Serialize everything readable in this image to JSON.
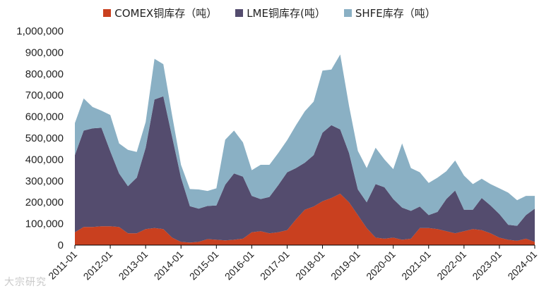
{
  "watermark": "大宗研究",
  "legend": [
    {
      "label": "COMEX铜库存（吨）",
      "color": "#c9401f"
    },
    {
      "label": "LME铜库存(吨）",
      "color": "#544c6e"
    },
    {
      "label": "SHFE库存（吨）",
      "color": "#8ab0c4"
    }
  ],
  "chart_data": {
    "type": "area",
    "stacked": true,
    "x": [
      "2011-01",
      "2011-04",
      "2011-07",
      "2011-10",
      "2012-01",
      "2012-04",
      "2012-07",
      "2012-10",
      "2013-01",
      "2013-04",
      "2013-07",
      "2013-10",
      "2014-01",
      "2014-04",
      "2014-07",
      "2014-10",
      "2015-01",
      "2015-04",
      "2015-07",
      "2015-10",
      "2016-01",
      "2016-04",
      "2016-07",
      "2016-10",
      "2017-01",
      "2017-04",
      "2017-07",
      "2017-10",
      "2018-01",
      "2018-04",
      "2018-07",
      "2018-10",
      "2019-01",
      "2019-04",
      "2019-07",
      "2019-10",
      "2020-01",
      "2020-04",
      "2020-07",
      "2020-10",
      "2021-01",
      "2021-04",
      "2021-07",
      "2021-10",
      "2022-01",
      "2022-04",
      "2022-07",
      "2022-10",
      "2023-01",
      "2023-04",
      "2023-07",
      "2023-10",
      "2024-01"
    ],
    "xticks": [
      "2011-01",
      "2012-01",
      "2013-01",
      "2014-01",
      "2015-01",
      "2016-01",
      "2017-01",
      "2018-01",
      "2019-01",
      "2020-01",
      "2021-01",
      "2022-01",
      "2023-01",
      "2024-01"
    ],
    "ylim": [
      0,
      1000000
    ],
    "yticks": [
      "0",
      "100,000",
      "200,000",
      "300,000",
      "400,000",
      "500,000",
      "600,000",
      "700,000",
      "800,000",
      "900,000",
      "1,000,000"
    ],
    "series": [
      {
        "name": "COMEX铜库存（吨）",
        "color": "#c9401f",
        "values": [
          60000,
          85000,
          85000,
          88000,
          88000,
          85000,
          55000,
          55000,
          75000,
          80000,
          75000,
          35000,
          15000,
          12000,
          15000,
          28000,
          25000,
          22000,
          25000,
          30000,
          60000,
          65000,
          55000,
          60000,
          70000,
          120000,
          165000,
          180000,
          205000,
          220000,
          240000,
          200000,
          140000,
          80000,
          35000,
          30000,
          35000,
          25000,
          30000,
          80000,
          80000,
          75000,
          65000,
          55000,
          65000,
          75000,
          70000,
          55000,
          35000,
          25000,
          20000,
          30000,
          15000
        ]
      },
      {
        "name": "LME铜库存(吨）",
        "color": "#544c6e",
        "values": [
          360000,
          450000,
          460000,
          460000,
          350000,
          250000,
          220000,
          260000,
          380000,
          600000,
          620000,
          470000,
          300000,
          170000,
          155000,
          155000,
          160000,
          260000,
          310000,
          290000,
          170000,
          150000,
          170000,
          220000,
          270000,
          240000,
          220000,
          240000,
          320000,
          340000,
          300000,
          230000,
          120000,
          120000,
          250000,
          240000,
          180000,
          150000,
          130000,
          100000,
          60000,
          80000,
          150000,
          200000,
          100000,
          90000,
          150000,
          130000,
          110000,
          70000,
          70000,
          110000,
          155000
        ]
      },
      {
        "name": "SHFE库存（吨）",
        "color": "#8ab0c4",
        "values": [
          150000,
          150000,
          100000,
          80000,
          170000,
          140000,
          170000,
          120000,
          120000,
          190000,
          150000,
          100000,
          60000,
          80000,
          90000,
          70000,
          80000,
          210000,
          200000,
          160000,
          120000,
          160000,
          150000,
          150000,
          150000,
          200000,
          240000,
          250000,
          290000,
          260000,
          350000,
          220000,
          180000,
          160000,
          170000,
          130000,
          140000,
          300000,
          200000,
          160000,
          150000,
          160000,
          130000,
          140000,
          160000,
          120000,
          90000,
          100000,
          120000,
          150000,
          120000,
          90000,
          60000
        ]
      }
    ]
  }
}
